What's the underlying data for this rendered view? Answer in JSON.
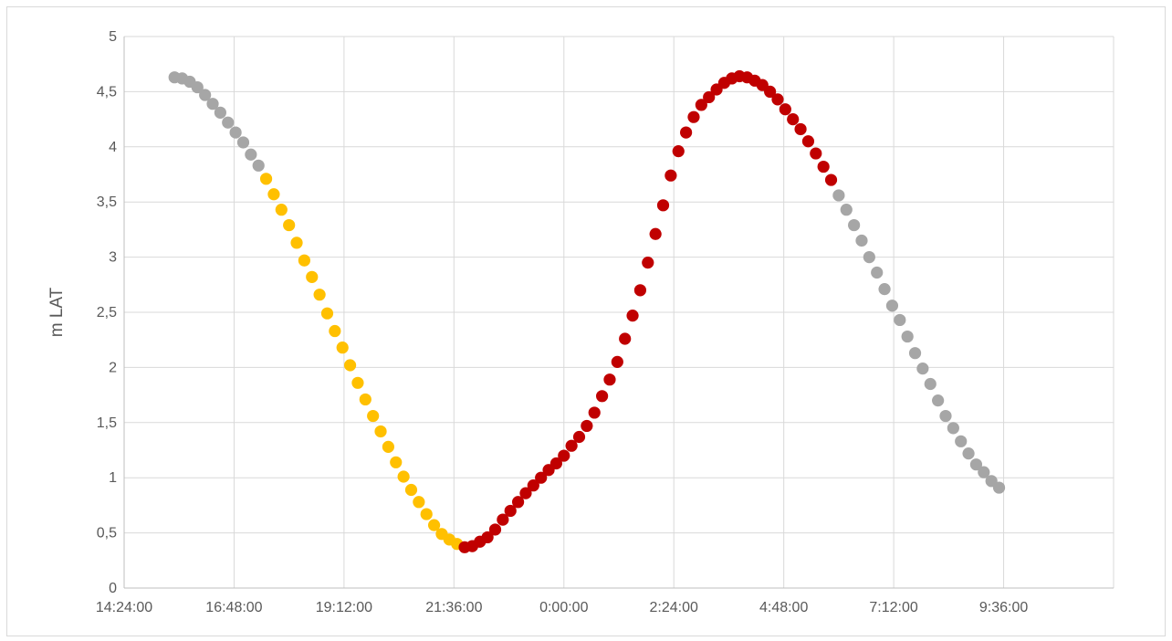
{
  "chart_data": {
    "type": "scatter",
    "title": "",
    "xlabel": "",
    "ylabel": "m LAT",
    "x_unit": "time of day (ticks every 2:24:00)",
    "xlim": [
      "14:24:00",
      "12:00:00 (+1 day)"
    ],
    "ylim": [
      0,
      5
    ],
    "x_ticks": [
      "14:24:00",
      "16:48:00",
      "19:12:00",
      "21:36:00",
      "0:00:00",
      "2:24:00",
      "4:48:00",
      "7:12:00",
      "9:36:00"
    ],
    "y_ticks": [
      "0",
      "0,5",
      "1",
      "1,5",
      "2",
      "2,5",
      "3",
      "3,5",
      "4",
      "4,5",
      "5"
    ],
    "grid": "horizontal and vertical",
    "legend": "none",
    "colors": {
      "grey": "#a6a6a6",
      "yellow": "#ffc000",
      "red": "#c00000"
    },
    "series": [
      {
        "color": "grey",
        "points": [
          [
            "15:30:00",
            4.63
          ],
          [
            "15:40:00",
            4.62
          ],
          [
            "15:50:00",
            4.59
          ],
          [
            "16:00:00",
            4.54
          ],
          [
            "16:10:00",
            4.47
          ],
          [
            "16:20:00",
            4.39
          ],
          [
            "16:30:00",
            4.31
          ],
          [
            "16:40:00",
            4.22
          ],
          [
            "16:50:00",
            4.13
          ],
          [
            "17:00:00",
            4.04
          ],
          [
            "17:10:00",
            3.93
          ],
          [
            "17:20:00",
            3.83
          ]
        ]
      },
      {
        "color": "yellow",
        "points": [
          [
            "17:30:00",
            3.71
          ],
          [
            "17:40:00",
            3.57
          ],
          [
            "17:50:00",
            3.43
          ],
          [
            "18:00:00",
            3.29
          ],
          [
            "18:10:00",
            3.13
          ],
          [
            "18:20:00",
            2.97
          ],
          [
            "18:30:00",
            2.82
          ],
          [
            "18:40:00",
            2.66
          ],
          [
            "18:50:00",
            2.49
          ],
          [
            "19:00:00",
            2.33
          ],
          [
            "19:10:00",
            2.18
          ],
          [
            "19:20:00",
            2.02
          ],
          [
            "19:30:00",
            1.86
          ],
          [
            "19:40:00",
            1.71
          ],
          [
            "19:50:00",
            1.56
          ],
          [
            "20:00:00",
            1.42
          ],
          [
            "20:10:00",
            1.28
          ],
          [
            "20:20:00",
            1.14
          ],
          [
            "20:30:00",
            1.01
          ],
          [
            "20:40:00",
            0.89
          ],
          [
            "20:50:00",
            0.78
          ],
          [
            "21:00:00",
            0.67
          ],
          [
            "21:10:00",
            0.57
          ],
          [
            "21:20:00",
            0.49
          ],
          [
            "21:30:00",
            0.44
          ],
          [
            "21:40:00",
            0.4
          ]
        ]
      },
      {
        "color": "red",
        "points": [
          [
            "21:50:00",
            0.37
          ],
          [
            "22:00:00",
            0.38
          ],
          [
            "22:10:00",
            0.42
          ],
          [
            "22:20:00",
            0.46
          ],
          [
            "22:30:00",
            0.53
          ],
          [
            "22:40:00",
            0.62
          ],
          [
            "22:50:00",
            0.7
          ],
          [
            "23:00:00",
            0.78
          ],
          [
            "23:10:00",
            0.86
          ],
          [
            "23:20:00",
            0.93
          ],
          [
            "23:30:00",
            1.0
          ],
          [
            "23:40:00",
            1.07
          ],
          [
            "23:50:00",
            1.13
          ],
          [
            "0:00:00",
            1.2
          ],
          [
            "0:10:00",
            1.29
          ],
          [
            "0:20:00",
            1.37
          ],
          [
            "0:30:00",
            1.47
          ],
          [
            "0:40:00",
            1.59
          ],
          [
            "0:50:00",
            1.74
          ],
          [
            "1:00:00",
            1.89
          ],
          [
            "1:10:00",
            2.05
          ],
          [
            "1:20:00",
            2.26
          ],
          [
            "1:30:00",
            2.47
          ],
          [
            "1:40:00",
            2.7
          ],
          [
            "1:50:00",
            2.95
          ],
          [
            "2:00:00",
            3.21
          ],
          [
            "2:10:00",
            3.47
          ],
          [
            "2:20:00",
            3.74
          ],
          [
            "2:30:00",
            3.96
          ],
          [
            "2:40:00",
            4.13
          ],
          [
            "2:50:00",
            4.27
          ],
          [
            "3:00:00",
            4.38
          ],
          [
            "3:10:00",
            4.45
          ],
          [
            "3:20:00",
            4.52
          ],
          [
            "3:30:00",
            4.58
          ],
          [
            "3:40:00",
            4.62
          ],
          [
            "3:50:00",
            4.64
          ],
          [
            "4:00:00",
            4.63
          ],
          [
            "4:10:00",
            4.6
          ],
          [
            "4:20:00",
            4.56
          ],
          [
            "4:30:00",
            4.5
          ],
          [
            "4:40:00",
            4.43
          ],
          [
            "4:50:00",
            4.34
          ],
          [
            "5:00:00",
            4.25
          ],
          [
            "5:10:00",
            4.16
          ],
          [
            "5:20:00",
            4.05
          ],
          [
            "5:30:00",
            3.94
          ],
          [
            "5:40:00",
            3.82
          ],
          [
            "5:50:00",
            3.7
          ]
        ]
      },
      {
        "color": "grey",
        "points": [
          [
            "6:00:00",
            3.56
          ],
          [
            "6:10:00",
            3.43
          ],
          [
            "6:20:00",
            3.29
          ],
          [
            "6:30:00",
            3.15
          ],
          [
            "6:40:00",
            3.0
          ],
          [
            "6:50:00",
            2.86
          ],
          [
            "7:00:00",
            2.71
          ],
          [
            "7:10:00",
            2.56
          ],
          [
            "7:20:00",
            2.43
          ],
          [
            "7:30:00",
            2.28
          ],
          [
            "7:40:00",
            2.13
          ],
          [
            "7:50:00",
            1.99
          ],
          [
            "8:00:00",
            1.85
          ],
          [
            "8:10:00",
            1.7
          ],
          [
            "8:20:00",
            1.56
          ],
          [
            "8:30:00",
            1.45
          ],
          [
            "8:40:00",
            1.33
          ],
          [
            "8:50:00",
            1.22
          ],
          [
            "9:00:00",
            1.12
          ],
          [
            "9:10:00",
            1.05
          ],
          [
            "9:20:00",
            0.97
          ],
          [
            "9:30:00",
            0.91
          ]
        ]
      }
    ]
  }
}
